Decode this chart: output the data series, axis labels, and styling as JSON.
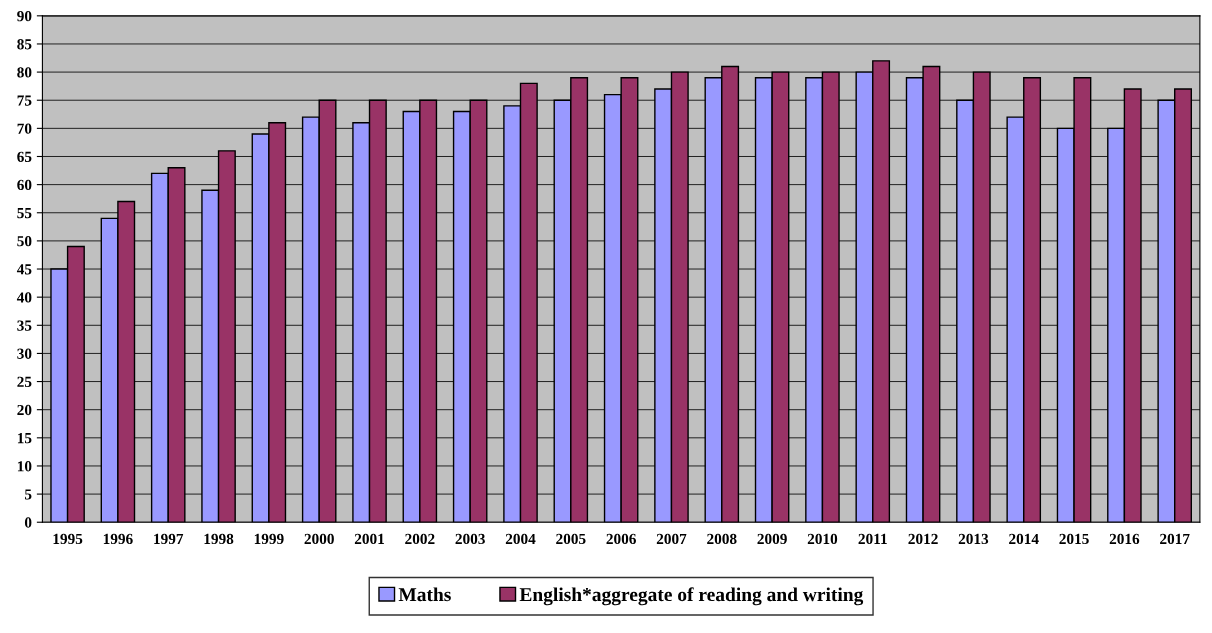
{
  "chart_data": {
    "type": "bar",
    "categories": [
      "1995",
      "1996",
      "1997",
      "1998",
      "1999",
      "2000",
      "2001",
      "2002",
      "2003",
      "2004",
      "2005",
      "2006",
      "2007",
      "2008",
      "2009",
      "2010",
      "2011",
      "2012",
      "2013",
      "2014",
      "2015",
      "2016",
      "2017"
    ],
    "series": [
      {
        "name": "Maths",
        "color": "#9999ff",
        "values": [
          45,
          54,
          62,
          59,
          69,
          72,
          71,
          73,
          73,
          74,
          75,
          76,
          77,
          79,
          79,
          79,
          80,
          79,
          75,
          72,
          70,
          70,
          75
        ]
      },
      {
        "name": "English*aggregate of reading and writing",
        "color": "#993366",
        "values": [
          49,
          57,
          63,
          66,
          71,
          75,
          75,
          75,
          75,
          78,
          79,
          79,
          80,
          81,
          80,
          80,
          82,
          81,
          80,
          79,
          79,
          77,
          77
        ]
      }
    ],
    "ylim": [
      0,
      90
    ],
    "yticks": [
      0,
      5,
      10,
      15,
      20,
      25,
      30,
      35,
      40,
      45,
      50,
      55,
      60,
      65,
      70,
      75,
      80,
      85,
      90
    ],
    "grid": "y",
    "legend": "bottom"
  }
}
